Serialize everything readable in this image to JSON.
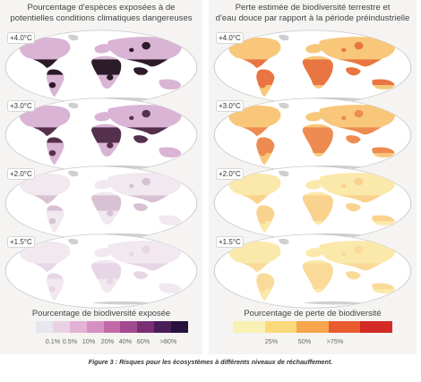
{
  "left_panel": {
    "title_line1": "Pourcentage d'espèces exposées à de",
    "title_line2": "potentielles conditions climatiques dangereuses",
    "levels": [
      {
        "label": "+4.0°C",
        "intensity": 0.95
      },
      {
        "label": "+3.0°C",
        "intensity": 0.7
      },
      {
        "label": "+2.0°C",
        "intensity": 0.35
      },
      {
        "label": "+1.5°C",
        "intensity": 0.18
      }
    ],
    "legend_title": "Pourcentage de biodiversité exposée",
    "legend_colors": [
      "#e8e6ee",
      "#ead2e6",
      "#e3b3d6",
      "#d690c2",
      "#c26aa8",
      "#a24a8f",
      "#7a2f74",
      "#4a1d58",
      "#26123c"
    ],
    "legend_ticks": [
      "0.1%",
      "0.5%",
      "10%",
      "20%",
      "40%",
      "60%",
      ">80%"
    ]
  },
  "right_panel": {
    "title_line1": "Perte estimée de biodiversité terrestre et",
    "title_line2": "d'eau douce par rapport à la période préindustrielle",
    "levels": [
      {
        "label": "+4.0°C",
        "intensity": 0.95
      },
      {
        "label": "+3.0°C",
        "intensity": 0.7
      },
      {
        "label": "+2.0°C",
        "intensity": 0.4
      },
      {
        "label": "+1.5°C",
        "intensity": 0.25
      }
    ],
    "legend_title": "Pourcentage de perte de biodiversité",
    "legend_colors": [
      "#f9f0b4",
      "#fbd97a",
      "#f7a64d",
      "#e85b2f",
      "#d42a26"
    ],
    "legend_ticks": [
      "25%",
      "50%",
      ">75%"
    ]
  },
  "caption": "Figure 3 : Risques pour les écosystèmes à différents niveaux de réchauffement."
}
